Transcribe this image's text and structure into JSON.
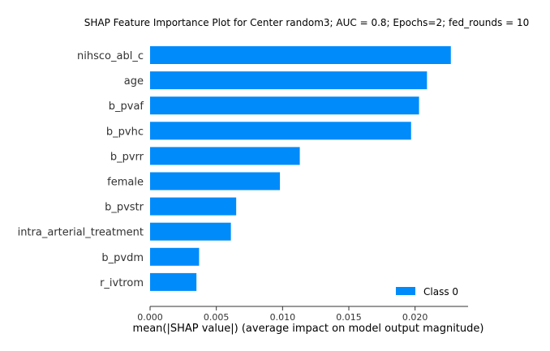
{
  "chart_data": {
    "type": "bar",
    "orientation": "horizontal",
    "title": "SHAP Feature Importance Plot for Center random3; AUC = 0.8; Epochs=2; fed_rounds = 10",
    "xlabel": "mean(|SHAP value|) (average impact on model output magnitude)",
    "ylabel": "",
    "categories": [
      "nihsco_abl_c",
      "age",
      "b_pvaf",
      "b_pvhc",
      "b_pvrr",
      "female",
      "b_pvstr",
      "intra_arterial_treatment",
      "b_pvdm",
      "r_ivtrom"
    ],
    "series": [
      {
        "name": "Class 0",
        "color": "#008bfb",
        "values": [
          0.0227,
          0.0209,
          0.0203,
          0.0197,
          0.0113,
          0.0098,
          0.0065,
          0.0061,
          0.0037,
          0.0035
        ]
      }
    ],
    "xlim": [
      0,
      0.024
    ],
    "xticks": [
      "0.000",
      "0.005",
      "0.010",
      "0.015",
      "0.020"
    ],
    "grid": false,
    "legend_position": "bottom-right"
  }
}
